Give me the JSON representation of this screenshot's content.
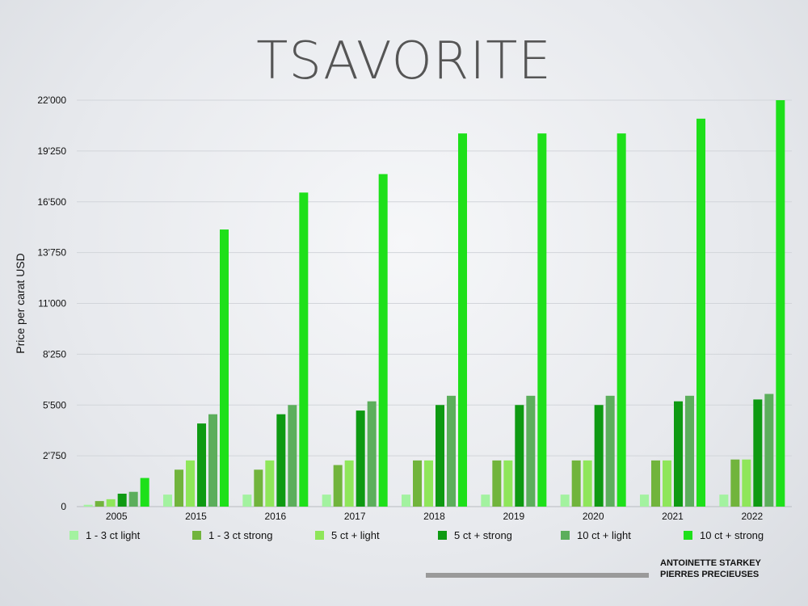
{
  "chart_data": {
    "type": "bar",
    "title": "TSAVORITE",
    "ylabel": "Price per carat USD",
    "xlabel": "",
    "ylim": [
      0,
      22000
    ],
    "yticks": [
      "0",
      "2'750",
      "5'500",
      "8'250",
      "11'000",
      "13'750",
      "16'500",
      "19'250",
      "22'000"
    ],
    "ytick_values": [
      0,
      2750,
      5500,
      8250,
      11000,
      13750,
      16500,
      19250,
      22000
    ],
    "grid": true,
    "legend_position": "bottom",
    "categories": [
      "2005",
      "2015",
      "2016",
      "2017",
      "2018",
      "2019",
      "2020",
      "2021",
      "2022"
    ],
    "series": [
      {
        "name": "1 - 3 ct light",
        "color": "#a3f2a0",
        "values": [
          100,
          650,
          650,
          650,
          650,
          650,
          650,
          650,
          650
        ]
      },
      {
        "name": "1 - 3 ct strong",
        "color": "#71b43c",
        "values": [
          300,
          2000,
          2000,
          2250,
          2500,
          2500,
          2500,
          2500,
          2550
        ]
      },
      {
        "name": "5 ct + light",
        "color": "#8fe65a",
        "values": [
          400,
          2500,
          2500,
          2500,
          2500,
          2500,
          2500,
          2500,
          2550
        ]
      },
      {
        "name": "5 ct + strong",
        "color": "#0e9a12",
        "values": [
          700,
          4500,
          5000,
          5200,
          5500,
          5500,
          5500,
          5700,
          5800
        ]
      },
      {
        "name": "10 ct + light",
        "color": "#5cae5c",
        "values": [
          800,
          5000,
          5500,
          5700,
          6000,
          6000,
          6000,
          6000,
          6100
        ]
      },
      {
        "name": "10 ct + strong",
        "color": "#1ee01a",
        "values": [
          1550,
          15000,
          17000,
          18000,
          20200,
          20200,
          20200,
          21000,
          22000
        ]
      }
    ]
  },
  "footer": {
    "line1": "ANTOINETTE STARKEY",
    "line2": "PIERRES PRECIEUSES"
  }
}
